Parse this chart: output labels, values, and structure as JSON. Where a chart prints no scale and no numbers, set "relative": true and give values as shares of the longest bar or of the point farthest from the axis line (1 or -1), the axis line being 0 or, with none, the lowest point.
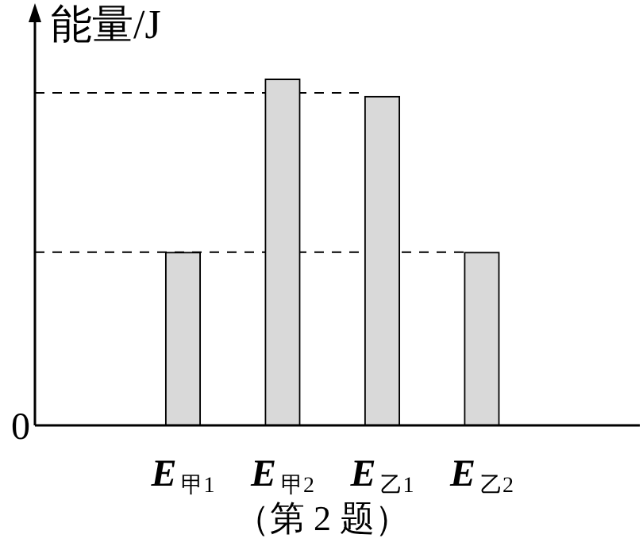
{
  "chart_data": {
    "type": "bar",
    "relative": true,
    "ylabel": "能量/J",
    "categories": [
      "E$_{甲1}$",
      "E$_{甲2}$",
      "E$_{乙1}$",
      "E$_{乙2}$"
    ],
    "values": [
      0.5,
      1,
      0.95,
      0.5
    ],
    "color": "#d9d9d9",
    "ref_lines": [
      {
        "axis": "y",
        "value": 0.96,
        "line_style": "dashed"
      },
      {
        "axis": "y",
        "value": 0.5,
        "line_style": "dashed"
      }
    ],
    "annotations": [
      "0",
      "（第 2 题）"
    ]
  }
}
